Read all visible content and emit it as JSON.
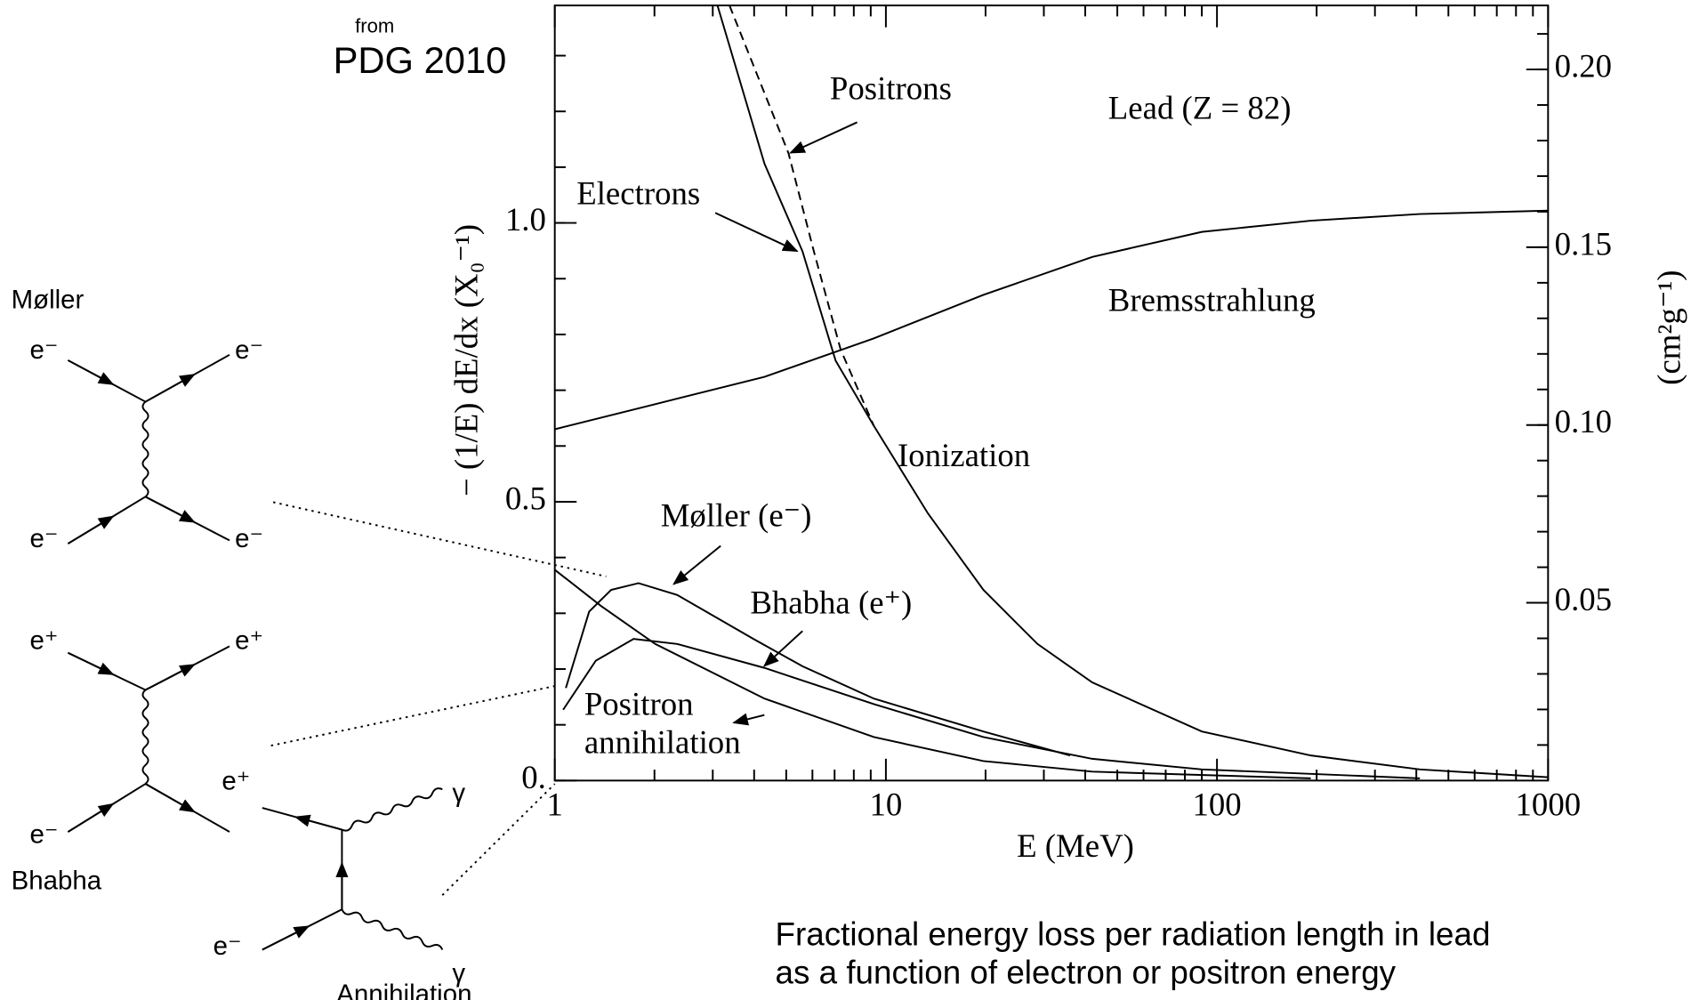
{
  "header": {
    "from": "from",
    "source": "PDG 2010"
  },
  "caption": [
    "Fractional energy loss per radiation length in lead",
    "as a function of electron or positron energy"
  ],
  "diagram_labels": [
    "Møller",
    "e⁻",
    "e⁻",
    "e⁻",
    "e⁻",
    "e⁺",
    "e⁺",
    "e⁻",
    "Bhabha",
    "e⁺",
    "γ",
    "e⁻",
    "γ",
    "Annihilation"
  ],
  "chart_data": {
    "type": "line",
    "xlabel": "E  (MeV)",
    "ylabel": "− (1/E) dE/dx  (X₀⁻¹)",
    "y2label": "(cm²g⁻¹)",
    "xscale": "log",
    "xlim": [
      1,
      1000
    ],
    "xticks": [
      1,
      10,
      100,
      1000
    ],
    "ylim": [
      0,
      1.39
    ],
    "yticks": [
      {
        "value": 0,
        "label": "0."
      },
      0.5,
      {
        "value": 1,
        "label": "1.0"
      }
    ],
    "y2lim": [
      0,
      0.218
    ],
    "y2ticks": [
      0.05,
      {
        "value": 0.1,
        "label": "0.10"
      },
      0.15,
      {
        "value": 0.2,
        "label": "0.20"
      }
    ],
    "annotations": [
      "Positrons",
      "Lead  (Z = 82)",
      "Electrons",
      "Bremsstrahlung",
      "Ionization",
      "Møller (e⁻)",
      "Bhabha (e⁺)",
      "Positron",
      "annihilation"
    ],
    "series": [
      {
        "color": "#000000",
        "dashed": false,
        "x": [
          3.1,
          4.3,
          5.6,
          7.05,
          9.2,
          13.4,
          19.7,
          28.7,
          42,
          90,
          192,
          410,
          1000
        ],
        "values": [
          1.39,
          1.106,
          0.949,
          0.753,
          0.636,
          0.479,
          0.342,
          0.245,
          0.176,
          0.088,
          0.045,
          0.02,
          0.006
        ]
      },
      {
        "color": "#000000",
        "dashed": true,
        "x": [
          3.37,
          5.08,
          6.06,
          7.3,
          9.2
        ],
        "values": [
          1.39,
          1.125,
          0.949,
          0.773,
          0.636
        ]
      },
      {
        "color": "#000000",
        "dashed": false,
        "x": [
          1,
          2.01,
          4.3,
          9.2,
          19.7,
          42,
          90,
          192,
          410,
          1000
        ],
        "values": [
          0.63,
          0.675,
          0.724,
          0.793,
          0.871,
          0.939,
          0.984,
          1.004,
          1.016,
          1.022
        ]
      },
      {
        "color": "#000000",
        "dashed": false,
        "x": [
          1.08,
          1.27,
          1.48,
          1.79,
          2.34,
          3.98,
          5.6,
          9.2,
          19.7,
          36
        ],
        "values": [
          0.166,
          0.303,
          0.342,
          0.354,
          0.333,
          0.254,
          0.205,
          0.147,
          0.088,
          0.045
        ]
      },
      {
        "color": "#000000",
        "dashed": false,
        "x": [
          1.06,
          1.33,
          1.73,
          2.34,
          4.3,
          9.2,
          19.7,
          42,
          90,
          410
        ],
        "values": [
          0.127,
          0.215,
          0.254,
          0.245,
          0.202,
          0.137,
          0.078,
          0.039,
          0.02,
          0.004
        ]
      },
      {
        "color": "#000000",
        "dashed": false,
        "x": [
          1,
          1.38,
          2.01,
          4.3,
          9.2,
          19.7,
          42,
          192
        ],
        "values": [
          0.378,
          0.313,
          0.245,
          0.147,
          0.078,
          0.035,
          0.016,
          0.004
        ]
      }
    ]
  }
}
